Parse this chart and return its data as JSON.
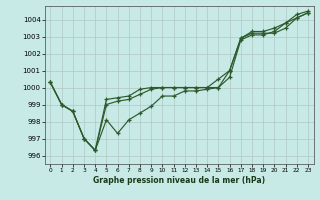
{
  "xlabel": "Graphe pression niveau de la mer (hPa)",
  "bg_color": "#c8eae6",
  "grid_color": "#b0c8c4",
  "line_color": "#2d5a2d",
  "x": [
    0,
    1,
    2,
    3,
    4,
    5,
    6,
    7,
    8,
    9,
    10,
    11,
    12,
    13,
    14,
    15,
    16,
    17,
    18,
    19,
    20,
    21,
    22,
    23
  ],
  "ylim": [
    995.5,
    1004.8
  ],
  "yticks": [
    996,
    997,
    998,
    999,
    1000,
    1001,
    1002,
    1003,
    1004
  ],
  "lines": [
    [
      1000.3,
      999.0,
      998.6,
      997.0,
      996.3,
      998.1,
      997.3,
      998.1,
      998.5,
      998.9,
      999.5,
      999.5,
      999.8,
      999.8,
      999.9,
      1000.0,
      1000.6,
      1002.8,
      1003.1,
      1003.1,
      1003.3,
      1003.8,
      1004.1,
      1004.4
    ],
    [
      1000.3,
      999.0,
      998.6,
      997.0,
      996.3,
      999.0,
      999.2,
      999.3,
      999.6,
      999.9,
      1000.0,
      1000.0,
      1000.0,
      1000.0,
      1000.0,
      1000.0,
      1001.0,
      1002.9,
      1003.2,
      1003.2,
      1003.2,
      1003.5,
      1004.1,
      1004.4
    ],
    [
      1000.3,
      999.0,
      998.6,
      997.0,
      996.3,
      999.3,
      999.4,
      999.5,
      999.9,
      1000.0,
      1000.0,
      1000.0,
      1000.0,
      1000.0,
      1000.0,
      1000.5,
      1001.0,
      1002.9,
      1003.3,
      1003.3,
      1003.5,
      1003.8,
      1004.3,
      1004.5
    ]
  ]
}
